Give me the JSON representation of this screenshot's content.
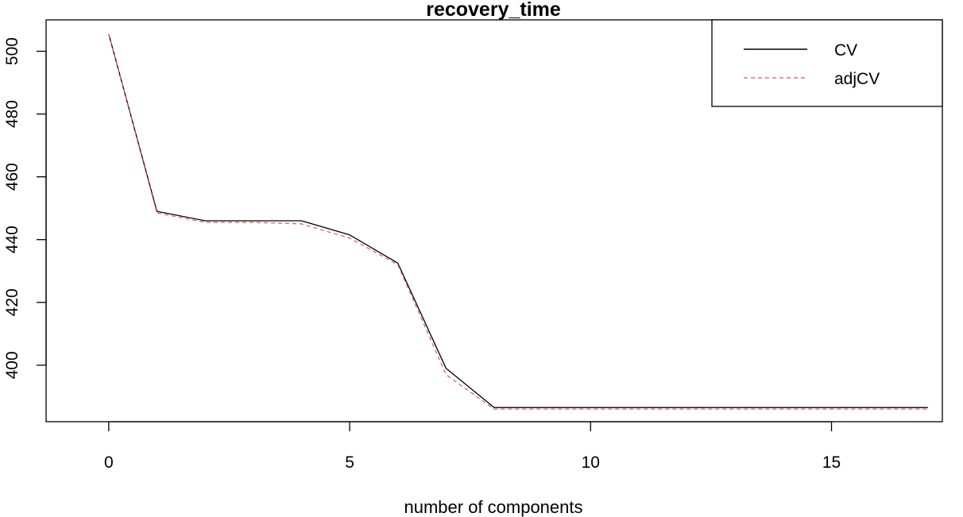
{
  "chart_data": {
    "type": "line",
    "title": "recovery_time",
    "xlabel": "number of components",
    "ylabel": "",
    "xlim": [
      -1.3,
      17.3
    ],
    "ylim": [
      382,
      510
    ],
    "xticks": [
      0,
      5,
      10,
      15
    ],
    "yticks": [
      400,
      420,
      440,
      460,
      480,
      500
    ],
    "grid": false,
    "legend_position": "top-right",
    "x": [
      0,
      1,
      2,
      3,
      4,
      5,
      6,
      7,
      8,
      9,
      10,
      11,
      12,
      13,
      14,
      15,
      16,
      17
    ],
    "series": [
      {
        "name": "CV",
        "color": "#000000",
        "dash": "solid",
        "values": [
          505.5,
          449,
          446,
          446,
          446,
          441.5,
          432.5,
          399,
          386.5,
          386.5,
          386.5,
          386.5,
          386.5,
          386.5,
          386.5,
          386.5,
          386.5,
          386.5
        ]
      },
      {
        "name": "adjCV",
        "color": "#df536b",
        "dash": "dashed",
        "values": [
          505.5,
          448.5,
          445.5,
          445.5,
          445,
          440.5,
          432,
          397,
          386,
          386,
          386,
          386,
          386,
          386,
          386,
          386,
          386,
          386
        ]
      }
    ]
  }
}
